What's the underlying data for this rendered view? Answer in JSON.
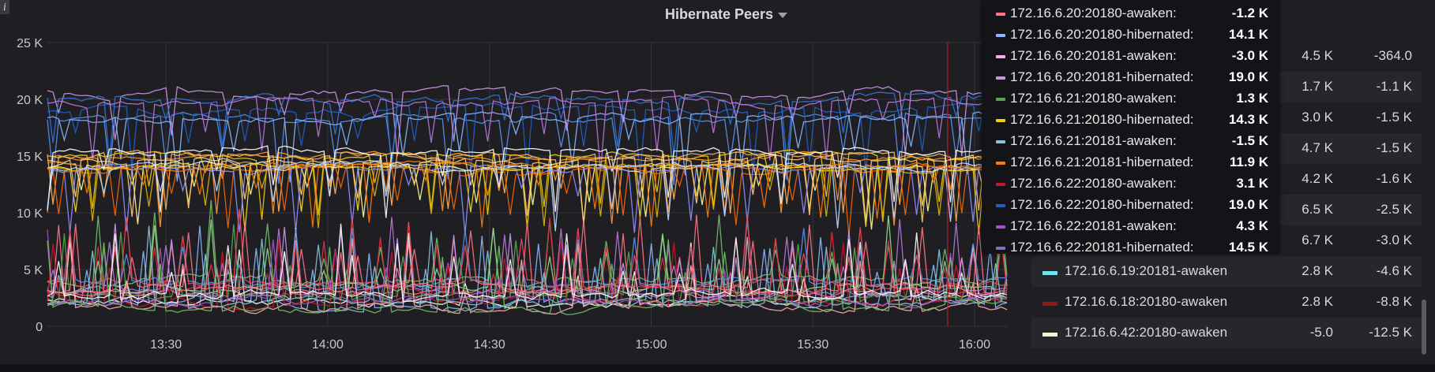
{
  "panel": {
    "title": "Hibernate Peers",
    "info_glyph": "i"
  },
  "chart_data": {
    "type": "line",
    "title": "Hibernate Peers",
    "x_ticks": [
      "13:30",
      "14:00",
      "14:30",
      "15:00",
      "15:30",
      "16:00"
    ],
    "x_range": [
      "13:08",
      "16:06"
    ],
    "y_ticks": [
      "0",
      "5 K",
      "10 K",
      "15 K",
      "20 K",
      "25 K"
    ],
    "ylim": [
      0,
      25000
    ],
    "grid": true,
    "cursor_time": "15:55",
    "series_groups": [
      {
        "group": "hibernated-high",
        "level": 19500,
        "amplitude": 1500,
        "colors": [
          "#5794f2",
          "#1f60c4",
          "#ca95e5",
          "#3274d9",
          "#8ab8ff",
          "#b877d9"
        ]
      },
      {
        "group": "hibernated-mid",
        "level": 14500,
        "amplitude": 1300,
        "colors": [
          "#fade2a",
          "#ff9830",
          "#f2cc0c",
          "#ffb357",
          "#fa6400",
          "#fff899",
          "#e0b400",
          "#ffcb7d",
          "#ffffff",
          "#8f8fff",
          "#ff780a",
          "#c0d8ff"
        ]
      },
      {
        "group": "awaken-low",
        "level": 3000,
        "amplitude": 1800,
        "colors": [
          "#ff7383",
          "#73bf69",
          "#8ab8ff",
          "#ffffff",
          "#ca95e5",
          "#b877d9",
          "#96d98d",
          "#5794f2",
          "#c4162a",
          "#e02f44",
          "#56a64b",
          "#ffa6b0",
          "#f2495c",
          "#8ac4d9",
          "#a352cc",
          "#73bf69",
          "#ff7383",
          "#ffffff"
        ]
      }
    ],
    "highlighted_series": [
      {
        "name": "172.16.6.20:20180-awaken",
        "value": -1200
      },
      {
        "name": "172.16.6.20:20180-hibernated",
        "value": 14100
      },
      {
        "name": "172.16.6.20:20181-awaken",
        "value": -3000
      },
      {
        "name": "172.16.6.20:20181-hibernated",
        "value": 19000
      },
      {
        "name": "172.16.6.21:20180-awaken",
        "value": 1300
      },
      {
        "name": "172.16.6.21:20180-hibernated",
        "value": 14300
      },
      {
        "name": "172.16.6.21:20181-awaken",
        "value": -1500
      },
      {
        "name": "172.16.6.21:20181-hibernated",
        "value": 11900
      },
      {
        "name": "172.16.6.22:20180-awaken",
        "value": 3100
      },
      {
        "name": "172.16.6.22:20180-hibernated",
        "value": 19000
      },
      {
        "name": "172.16.6.22:20181-awaken",
        "value": 4300
      },
      {
        "name": "172.16.6.22:20181-hibernated",
        "value": 14500
      }
    ]
  },
  "tooltip": {
    "rows": [
      {
        "name": "172.16.6.20:20180-awaken:",
        "value": "-1.2 K",
        "color": "#ff7383"
      },
      {
        "name": "172.16.6.20:20180-hibernated:",
        "value": "14.1 K",
        "color": "#8ab8ff"
      },
      {
        "name": "172.16.6.20:20181-awaken:",
        "value": "-3.0 K",
        "color": "#ffa6e4"
      },
      {
        "name": "172.16.6.20:20181-hibernated:",
        "value": "19.0 K",
        "color": "#ca95e5"
      },
      {
        "name": "172.16.6.21:20180-awaken:",
        "value": "1.3 K",
        "color": "#56a64b"
      },
      {
        "name": "172.16.6.21:20180-hibernated:",
        "value": "14.3 K",
        "color": "#f2cc0c"
      },
      {
        "name": "172.16.6.21:20181-awaken:",
        "value": "-1.5 K",
        "color": "#8ac4d9"
      },
      {
        "name": "172.16.6.21:20181-hibernated:",
        "value": "11.9 K",
        "color": "#ff780a"
      },
      {
        "name": "172.16.6.22:20180-awaken:",
        "value": "3.1 K",
        "color": "#c4162a"
      },
      {
        "name": "172.16.6.22:20180-hibernated:",
        "value": "19.0 K",
        "color": "#1f60c4"
      },
      {
        "name": "172.16.6.22:20181-awaken:",
        "value": "4.3 K",
        "color": "#a352cc"
      },
      {
        "name": "172.16.6.22:20181-hibernated:",
        "value": "14.5 K",
        "color": "#806eb7"
      }
    ]
  },
  "legend": {
    "rows": [
      {
        "name": "",
        "v1": "4.5 K",
        "v2": "-364.0",
        "color": ""
      },
      {
        "name": "",
        "v1": "1.7 K",
        "v2": "-1.1 K",
        "color": ""
      },
      {
        "name": "",
        "v1": "3.0 K",
        "v2": "-1.5 K",
        "color": ""
      },
      {
        "name": "",
        "v1": "4.7 K",
        "v2": "-1.5 K",
        "color": ""
      },
      {
        "name": "",
        "v1": "4.2 K",
        "v2": "-1.6 K",
        "color": ""
      },
      {
        "name": "",
        "v1": "6.5 K",
        "v2": "-2.5 K",
        "color": ""
      },
      {
        "name": "",
        "v1": "6.7 K",
        "v2": "-3.0 K",
        "color": ""
      },
      {
        "name": "172.16.6.19:20181-awaken",
        "v1": "2.8 K",
        "v2": "-4.6 K",
        "color": "#73e3f2"
      },
      {
        "name": "172.16.6.18:20180-awaken",
        "v1": "2.8 K",
        "v2": "-8.8 K",
        "color": "#8f1a12"
      },
      {
        "name": "172.16.6.42:20180-awaken",
        "v1": "-5.0",
        "v2": "-12.5 K",
        "color": "#e9f7d6"
      }
    ]
  }
}
